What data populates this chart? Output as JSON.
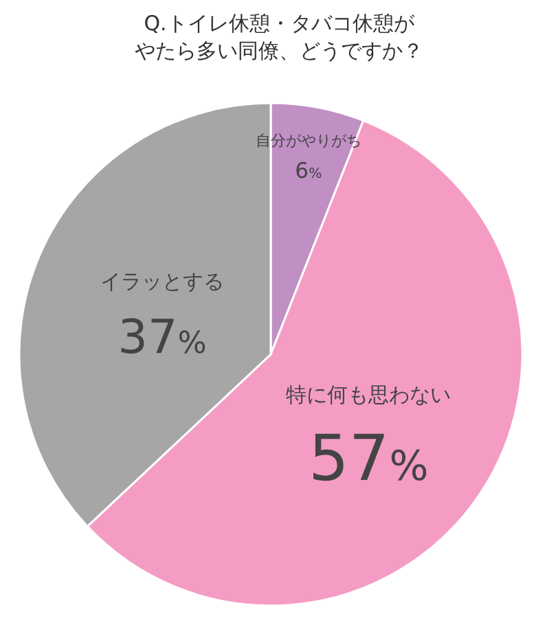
{
  "chart_data": {
    "type": "pie",
    "title": "Q.トイレ休憩・タバコ休憩がやたら多い同僚、どうですか？",
    "categories": [
      "自分がやりがち",
      "特に何も思わない",
      "イラッとする"
    ],
    "values": [
      6,
      57,
      37
    ],
    "colors": [
      "#c08fc4",
      "#f49cc4",
      "#a6a6a6"
    ],
    "value_labels": [
      "6%",
      "57%",
      "37%"
    ]
  }
}
